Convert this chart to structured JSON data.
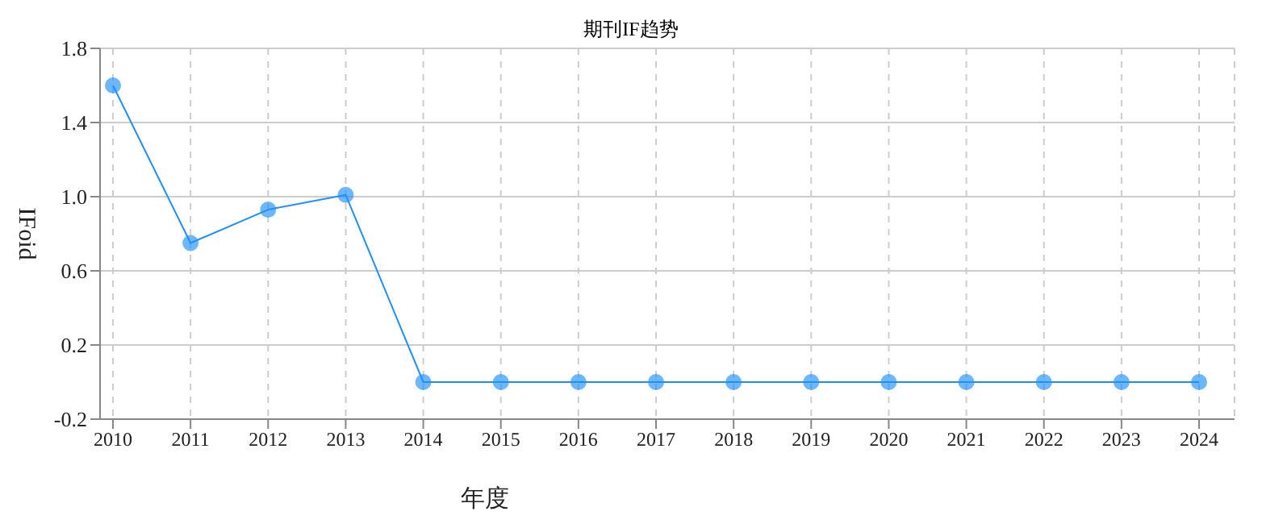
{
  "chart_data": {
    "type": "line",
    "title": "期刊IF趋势",
    "xlabel": "年度",
    "ylabel": "IFoid",
    "categories": [
      "2010",
      "2011",
      "2012",
      "2013",
      "2014",
      "2015",
      "2016",
      "2017",
      "2018",
      "2019",
      "2020",
      "2021",
      "2022",
      "2023",
      "2024"
    ],
    "series": [
      {
        "color": "#1e90ff",
        "values": [
          1.6,
          0.75,
          0.93,
          1.01,
          0,
          0,
          0,
          0,
          0,
          0,
          0,
          0,
          0,
          0,
          0
        ]
      }
    ],
    "ylim": [
      -0.2,
      1.8
    ],
    "yticks": [
      -0.2,
      0.2,
      0.6,
      {
        "value": 1,
        "label": "1.0"
      },
      1.4,
      1.8
    ],
    "grid": true,
    "marker": "circle",
    "line_style": "solid"
  }
}
